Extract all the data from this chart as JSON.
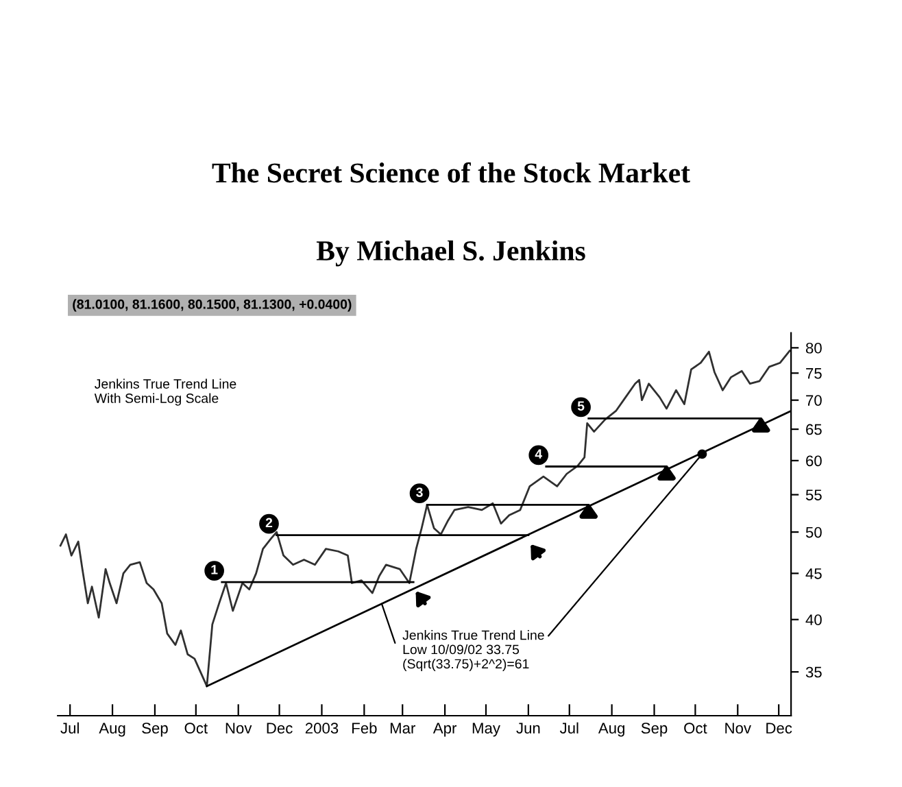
{
  "chart_data": {
    "type": "line",
    "title": "The Secret Science of the Stock Market",
    "subtitle": "By Michael S. Jenkins",
    "log": true,
    "grid": false,
    "legend": false,
    "marker": "none",
    "line_style": "solid",
    "xlim": [
      "2002-06-22",
      "2003-12-10"
    ],
    "ylim": [
      31.3,
      83.1
    ],
    "xticks": [
      {
        "value": "2002-07-01",
        "label": "Jul"
      },
      {
        "value": "2002-08-01",
        "label": "Aug"
      },
      {
        "value": "2002-09-01",
        "label": "Sep"
      },
      {
        "value": "2002-10-01",
        "label": "Oct"
      },
      {
        "value": "2002-11-01",
        "label": "Nov"
      },
      {
        "value": "2002-12-01",
        "label": "Dec"
      },
      {
        "value": "2003-01-01",
        "label": "2003"
      },
      {
        "value": "2003-02-01",
        "label": "Feb"
      },
      {
        "value": "2003-03-01",
        "label": "Mar"
      },
      {
        "value": "2003-04-01",
        "label": "Apr"
      },
      {
        "value": "2003-05-01",
        "label": "May"
      },
      {
        "value": "2003-06-01",
        "label": "Jun"
      },
      {
        "value": "2003-07-01",
        "label": "Jul"
      },
      {
        "value": "2003-08-01",
        "label": "Aug"
      },
      {
        "value": "2003-09-01",
        "label": "Sep"
      },
      {
        "value": "2003-10-01",
        "label": "Oct"
      },
      {
        "value": "2003-11-01",
        "label": "Nov"
      },
      {
        "value": "2003-12-01",
        "label": "Dec"
      }
    ],
    "yticks": [
      35,
      40,
      45,
      50,
      55,
      60,
      65,
      70,
      75,
      80
    ],
    "series": [
      {
        "color": "#303030",
        "x": [
          "2002-06-24",
          "2002-06-28",
          "2002-07-02",
          "2002-07-07",
          "2002-07-10",
          "2002-07-14",
          "2002-07-17",
          "2002-07-22",
          "2002-07-27",
          "2002-07-30",
          "2002-08-04",
          "2002-08-09",
          "2002-08-14",
          "2002-08-21",
          "2002-08-26",
          "2002-08-31",
          "2002-09-06",
          "2002-09-10",
          "2002-09-16",
          "2002-09-20",
          "2002-09-25",
          "2002-09-30",
          "2002-10-09",
          "2002-10-13",
          "2002-10-18",
          "2002-10-23",
          "2002-10-28",
          "2002-11-04",
          "2002-11-09",
          "2002-11-14",
          "2002-11-19",
          "2002-11-25",
          "2002-11-29",
          "2002-12-04",
          "2002-12-11",
          "2002-12-19",
          "2002-12-27",
          "2003-01-04",
          "2003-01-13",
          "2003-01-20",
          "2003-01-23",
          "2003-01-30",
          "2003-02-07",
          "2003-02-12",
          "2003-02-17",
          "2003-02-27",
          "2003-03-06",
          "2003-03-11",
          "2003-03-15",
          "2003-03-19",
          "2003-03-24",
          "2003-03-29",
          "2003-04-03",
          "2003-04-08",
          "2003-04-18",
          "2003-04-28",
          "2003-05-06",
          "2003-05-12",
          "2003-05-18",
          "2003-05-26",
          "2003-06-02",
          "2003-06-12",
          "2003-06-22",
          "2003-06-29",
          "2003-07-07",
          "2003-07-12",
          "2003-07-14",
          "2003-07-19",
          "2003-07-27",
          "2003-08-04",
          "2003-08-11",
          "2003-08-18",
          "2003-08-21",
          "2003-08-23",
          "2003-08-28",
          "2003-09-05",
          "2003-09-10",
          "2003-09-17",
          "2003-09-23",
          "2003-09-28",
          "2003-10-05",
          "2003-10-11",
          "2003-10-15",
          "2003-10-21",
          "2003-10-27",
          "2003-11-04",
          "2003-11-10",
          "2003-11-17",
          "2003-11-24",
          "2003-12-02",
          "2003-12-09"
        ],
        "values": [
          48.3,
          49.7,
          47.1,
          48.8,
          45.5,
          41.7,
          43.5,
          40.2,
          45.5,
          43.9,
          41.7,
          45.0,
          46.0,
          46.3,
          43.9,
          43.2,
          41.7,
          38.6,
          37.5,
          38.9,
          36.6,
          36.2,
          33.75,
          39.5,
          41.7,
          43.9,
          40.9,
          43.9,
          43.2,
          45.0,
          47.9,
          49.2,
          50.0,
          47.1,
          46.0,
          46.6,
          46.0,
          47.9,
          47.6,
          47.1,
          43.9,
          44.2,
          42.8,
          44.7,
          46.0,
          45.5,
          43.9,
          47.9,
          50.5,
          53.6,
          50.5,
          49.7,
          51.4,
          52.9,
          53.3,
          52.9,
          53.8,
          51.1,
          52.2,
          52.9,
          56.2,
          57.6,
          56.2,
          58.0,
          59.2,
          60.5,
          66.0,
          64.6,
          66.6,
          68.1,
          70.5,
          73.0,
          73.7,
          70.0,
          73.0,
          70.5,
          68.5,
          71.8,
          69.3,
          75.7,
          77.0,
          79.2,
          75.2,
          71.8,
          74.2,
          75.4,
          73.0,
          73.5,
          76.2,
          77.0,
          79.4
        ]
      },
      {
        "color": "#000000",
        "x": [
          "2002-10-09",
          "2003-12-09"
        ],
        "values": [
          33.75,
          68.0
        ]
      },
      {
        "color": "#000000",
        "x": [
          "2002-10-20",
          "2003-03-09"
        ],
        "values": [
          44.0,
          44.0
        ]
      },
      {
        "color": "#000000",
        "x": [
          "2002-11-29",
          "2003-06-01"
        ],
        "values": [
          49.6,
          49.6
        ]
      },
      {
        "color": "#000000",
        "x": [
          "2003-03-19",
          "2003-07-15"
        ],
        "values": [
          53.6,
          53.6
        ]
      },
      {
        "color": "#000000",
        "x": [
          "2003-06-14",
          "2003-09-10"
        ],
        "values": [
          59.1,
          59.1
        ]
      },
      {
        "color": "#000000",
        "x": [
          "2003-07-15",
          "2003-11-18"
        ],
        "values": [
          66.8,
          66.8
        ]
      }
    ],
    "annotations": [
      "(81.0100, 81.1600, 80.1500, 81.1300, +0.0400)",
      "Jenkins True Trend Line\nWith Semi-Log Scale",
      {
        "text": "Jenkins True Trend Line\nLow 10/09/02 33.75\n(Sqrt(33.75)+2^2)=61",
        "x": "2003-10-06",
        "y": 61
      },
      {
        "text": "1",
        "x": "2002-10-20",
        "y": 44.0
      },
      {
        "text": "2",
        "x": "2002-11-29",
        "y": 49.6
      },
      {
        "text": "3",
        "x": "2003-03-19",
        "y": 53.6
      },
      {
        "text": "4",
        "x": "2003-06-14",
        "y": 59.1
      },
      {
        "text": "5",
        "x": "2003-07-15",
        "y": 66.8
      }
    ]
  }
}
